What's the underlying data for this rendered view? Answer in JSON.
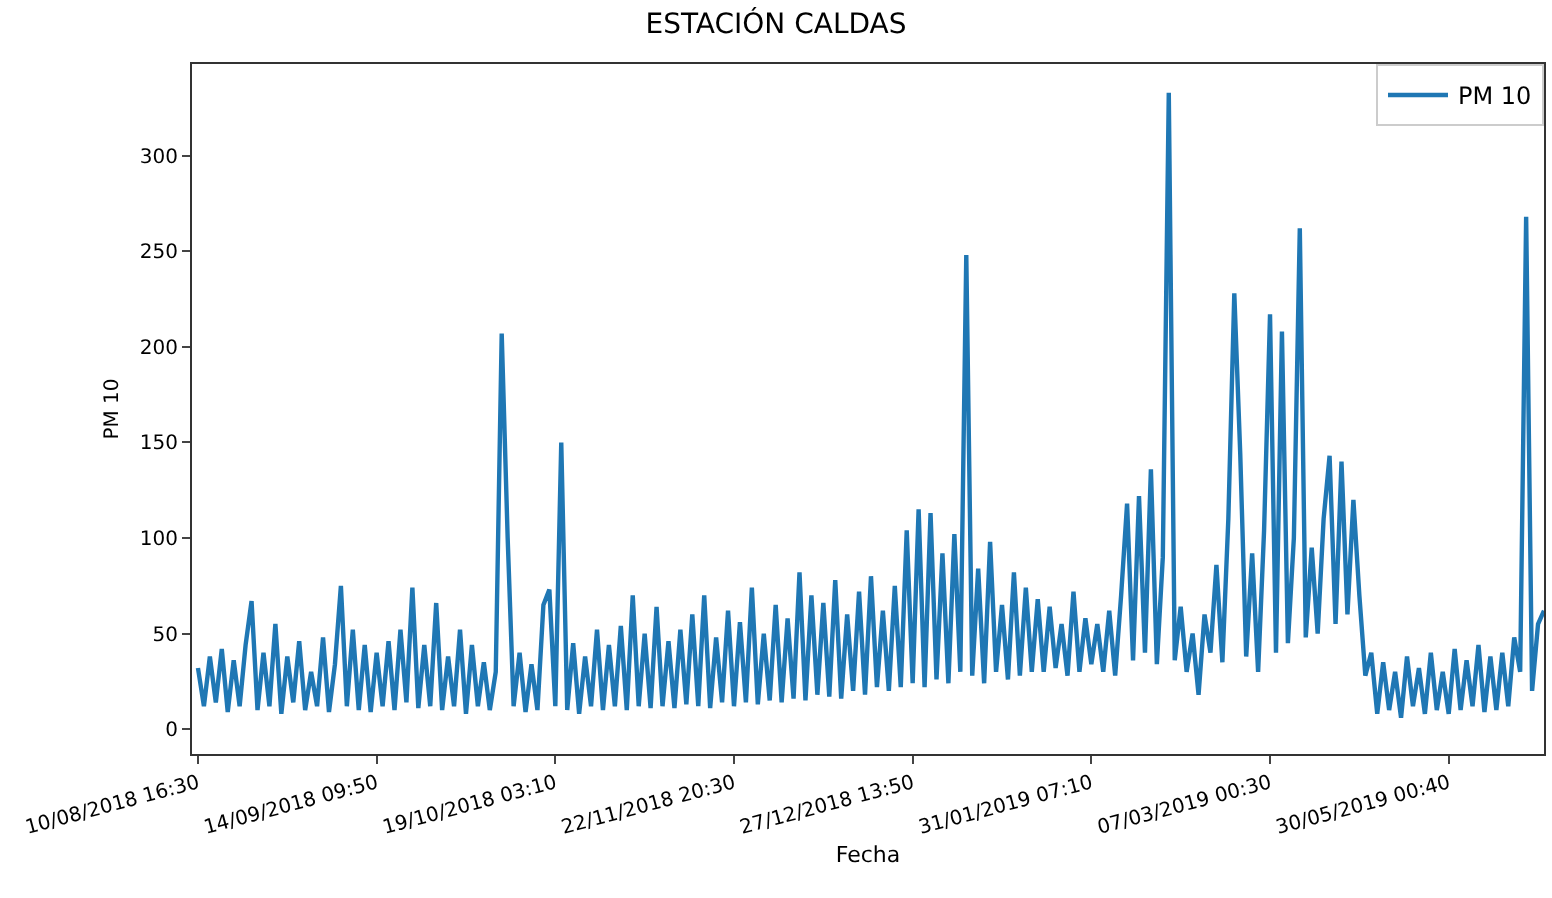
{
  "chart_data": {
    "type": "line",
    "title": "ESTACIÓN CALDAS",
    "xlabel": "Fecha",
    "ylabel": "PM 10",
    "categories": [
      "10/08/2018 16:30",
      null,
      null,
      null,
      null,
      null,
      null,
      null,
      null,
      null,
      null,
      null,
      null,
      null,
      null,
      null,
      null,
      null,
      null,
      null,
      null,
      null,
      null,
      null,
      null,
      null,
      null,
      null,
      null,
      null,
      "14/09/2018 09:50",
      null,
      null,
      null,
      null,
      null,
      null,
      null,
      null,
      null,
      null,
      null,
      null,
      null,
      null,
      null,
      null,
      null,
      null,
      null,
      null,
      null,
      null,
      null,
      null,
      null,
      null,
      null,
      null,
      null,
      "19/10/2018 03:10",
      null,
      null,
      null,
      null,
      null,
      null,
      null,
      null,
      null,
      null,
      null,
      null,
      null,
      null,
      null,
      null,
      null,
      null,
      null,
      null,
      null,
      null,
      null,
      null,
      null,
      null,
      null,
      null,
      null,
      "22/11/2018 20:30",
      null,
      null,
      null,
      null,
      null,
      null,
      null,
      null,
      null,
      null,
      null,
      null,
      null,
      null,
      null,
      null,
      null,
      null,
      null,
      null,
      null,
      null,
      null,
      null,
      null,
      null,
      null,
      null,
      null,
      "27/12/2018 13:50",
      null,
      null,
      null,
      null,
      null,
      null,
      null,
      null,
      null,
      null,
      null,
      null,
      null,
      null,
      null,
      null,
      null,
      null,
      null,
      null,
      null,
      null,
      null,
      null,
      null,
      null,
      null,
      null,
      null,
      "31/01/2019 07:10",
      null,
      null,
      null,
      null,
      null,
      null,
      null,
      null,
      null,
      null,
      null,
      null,
      null,
      null,
      null,
      null,
      null,
      null,
      null,
      null,
      null,
      null,
      null,
      null,
      null,
      null,
      null,
      null,
      null,
      "07/03/2019 00:30",
      null,
      null,
      null,
      null,
      null,
      null,
      null,
      null,
      null,
      null,
      null,
      null,
      null,
      null,
      null,
      null,
      null,
      null,
      null,
      null,
      null,
      null,
      null,
      null,
      null,
      null,
      null,
      null,
      null,
      "30/05/2019 00:40",
      null,
      null,
      null,
      null,
      null,
      null,
      null,
      null,
      null,
      null,
      null,
      null,
      null,
      null,
      null,
      null
    ],
    "series": [
      {
        "name": "PM 10",
        "color": "#1f77b4",
        "values": [
          32,
          12,
          38,
          14,
          42,
          9,
          36,
          12,
          44,
          67,
          10,
          40,
          12,
          55,
          8,
          38,
          14,
          46,
          10,
          30,
          12,
          48,
          9,
          34,
          75,
          12,
          52,
          10,
          44,
          9,
          40,
          12,
          46,
          10,
          52,
          14,
          74,
          11,
          44,
          12,
          66,
          10,
          38,
          12,
          52,
          8,
          44,
          12,
          35,
          10,
          30,
          207,
          100,
          12,
          40,
          9,
          34,
          10,
          65,
          73,
          12,
          150,
          10,
          45,
          8,
          38,
          12,
          52,
          10,
          44,
          12,
          54,
          10,
          70,
          12,
          50,
          11,
          64,
          12,
          46,
          11,
          52,
          13,
          60,
          12,
          70,
          11,
          48,
          14,
          62,
          12,
          56,
          14,
          74,
          13,
          50,
          15,
          65,
          14,
          58,
          16,
          82,
          15,
          70,
          18,
          66,
          17,
          78,
          16,
          60,
          20,
          72,
          18,
          80,
          22,
          62,
          20,
          75,
          22,
          104,
          24,
          115,
          22,
          113,
          26,
          92,
          24,
          102,
          30,
          248,
          28,
          84,
          24,
          98,
          30,
          65,
          26,
          82,
          28,
          74,
          30,
          68,
          30,
          64,
          32,
          55,
          28,
          72,
          30,
          58,
          34,
          55,
          30,
          62,
          28,
          70,
          118,
          36,
          122,
          40,
          136,
          34,
          90,
          333,
          36,
          64,
          30,
          50,
          18,
          60,
          40,
          86,
          35,
          110,
          228,
          144,
          38,
          92,
          30,
          104,
          217,
          40,
          208,
          45,
          100,
          262,
          48,
          95,
          50,
          110,
          143,
          55,
          140,
          60,
          120,
          70,
          28,
          40,
          8,
          35,
          10,
          30,
          6,
          38,
          12,
          32,
          8,
          40,
          10,
          30,
          8,
          42,
          10,
          36,
          12,
          44,
          9,
          38,
          10,
          40,
          12,
          48,
          30,
          268,
          20,
          55,
          62
        ]
      }
    ],
    "ylim": [
      -13,
      348
    ],
    "yticks": [
      0,
      50,
      100,
      150,
      200,
      250,
      300
    ],
    "grid": false,
    "legend": "top right",
    "marker": "none",
    "line_style": "solid"
  }
}
